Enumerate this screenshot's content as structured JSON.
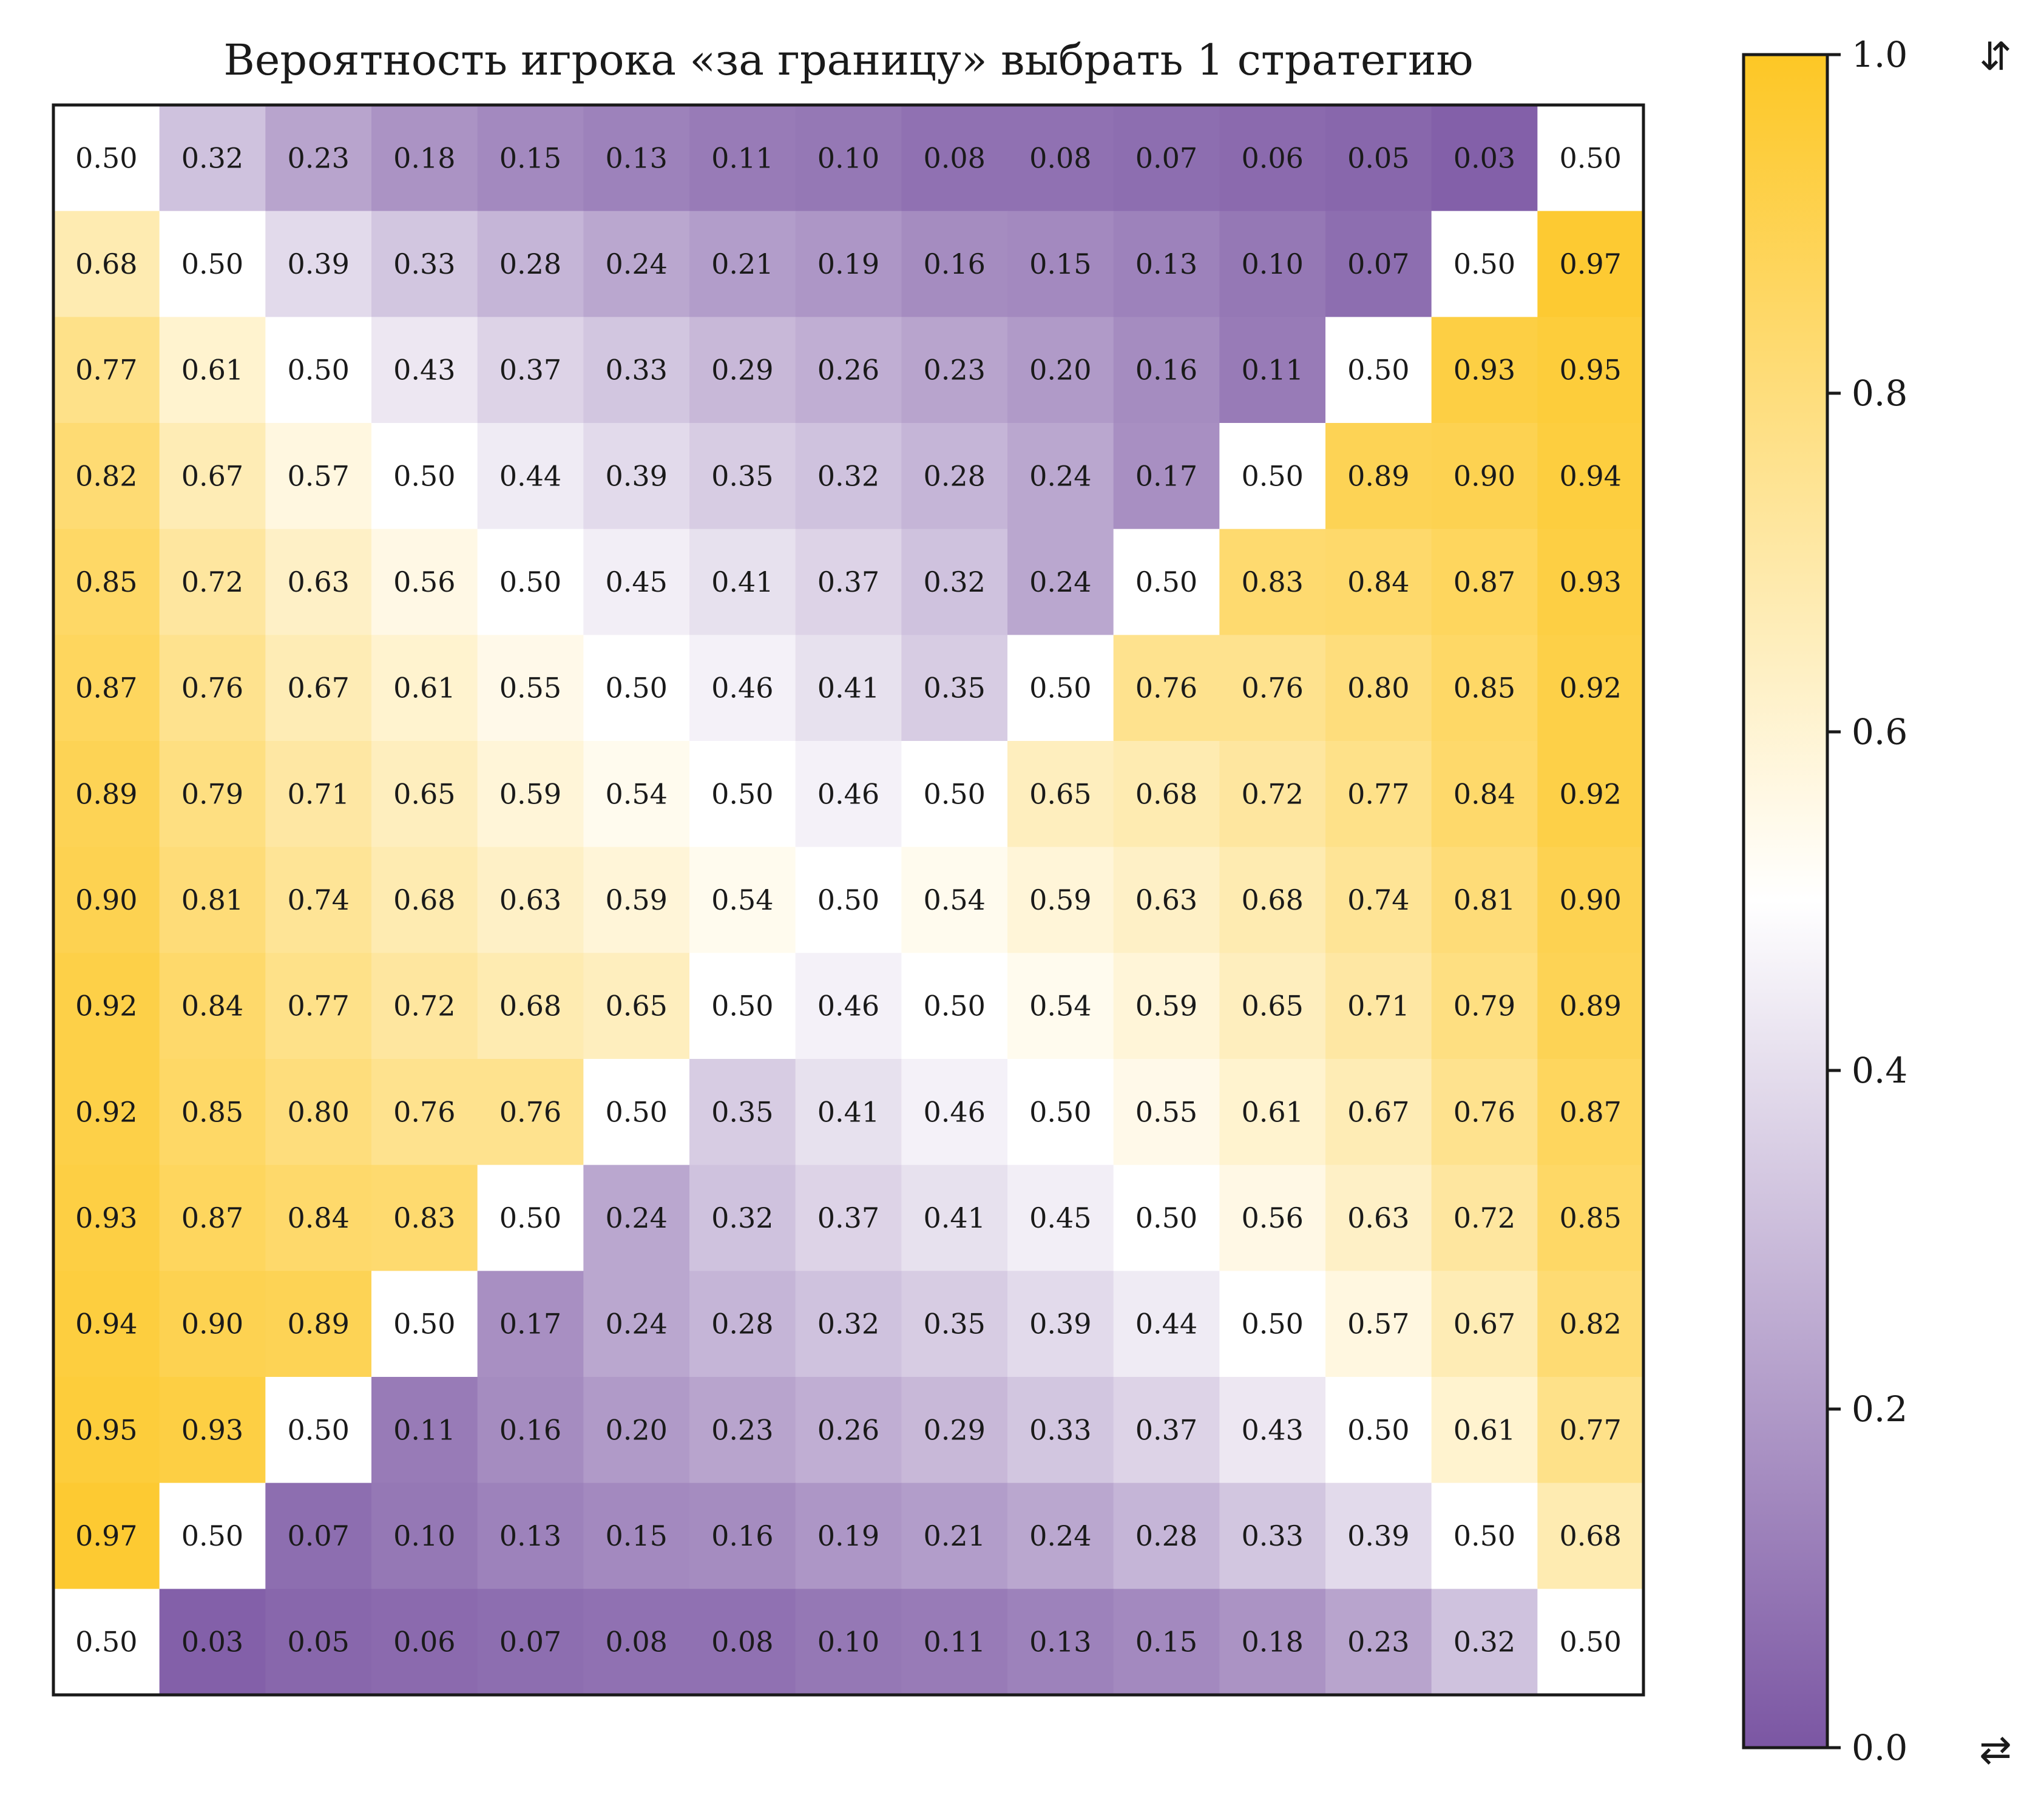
{
  "chart_data": {
    "type": "heatmap",
    "title": "Вероятность игрока «за границу» выбрать 1 стратегию",
    "value_range": [
      0.0,
      1.0
    ],
    "colormap": {
      "low": "#7b56a3",
      "mid": "#ffffff",
      "high": "#fdc725"
    },
    "colorbar": {
      "ticks": [
        "0.0",
        "0.2",
        "0.4",
        "0.6",
        "0.8",
        "1.0"
      ],
      "top_symbol": "⇵",
      "bottom_symbol": "⇄"
    },
    "values": [
      [
        0.5,
        0.32,
        0.23,
        0.18,
        0.15,
        0.13,
        0.11,
        0.1,
        0.08,
        0.08,
        0.07,
        0.06,
        0.05,
        0.03,
        0.5
      ],
      [
        0.68,
        0.5,
        0.39,
        0.33,
        0.28,
        0.24,
        0.21,
        0.19,
        0.16,
        0.15,
        0.13,
        0.1,
        0.07,
        0.5,
        0.97
      ],
      [
        0.77,
        0.61,
        0.5,
        0.43,
        0.37,
        0.33,
        0.29,
        0.26,
        0.23,
        0.2,
        0.16,
        0.11,
        0.5,
        0.93,
        0.95
      ],
      [
        0.82,
        0.67,
        0.57,
        0.5,
        0.44,
        0.39,
        0.35,
        0.32,
        0.28,
        0.24,
        0.17,
        0.5,
        0.89,
        0.9,
        0.94
      ],
      [
        0.85,
        0.72,
        0.63,
        0.56,
        0.5,
        0.45,
        0.41,
        0.37,
        0.32,
        0.24,
        0.5,
        0.83,
        0.84,
        0.87,
        0.93
      ],
      [
        0.87,
        0.76,
        0.67,
        0.61,
        0.55,
        0.5,
        0.46,
        0.41,
        0.35,
        0.5,
        0.76,
        0.76,
        0.8,
        0.85,
        0.92
      ],
      [
        0.89,
        0.79,
        0.71,
        0.65,
        0.59,
        0.54,
        0.5,
        0.46,
        0.5,
        0.65,
        0.68,
        0.72,
        0.77,
        0.84,
        0.92
      ],
      [
        0.9,
        0.81,
        0.74,
        0.68,
        0.63,
        0.59,
        0.54,
        0.5,
        0.54,
        0.59,
        0.63,
        0.68,
        0.74,
        0.81,
        0.9
      ],
      [
        0.92,
        0.84,
        0.77,
        0.72,
        0.68,
        0.65,
        0.5,
        0.46,
        0.5,
        0.54,
        0.59,
        0.65,
        0.71,
        0.79,
        0.89
      ],
      [
        0.92,
        0.85,
        0.8,
        0.76,
        0.76,
        0.5,
        0.35,
        0.41,
        0.46,
        0.5,
        0.55,
        0.61,
        0.67,
        0.76,
        0.87
      ],
      [
        0.93,
        0.87,
        0.84,
        0.83,
        0.5,
        0.24,
        0.32,
        0.37,
        0.41,
        0.45,
        0.5,
        0.56,
        0.63,
        0.72,
        0.85
      ],
      [
        0.94,
        0.9,
        0.89,
        0.5,
        0.17,
        0.24,
        0.28,
        0.32,
        0.35,
        0.39,
        0.44,
        0.5,
        0.57,
        0.67,
        0.82
      ],
      [
        0.95,
        0.93,
        0.5,
        0.11,
        0.16,
        0.2,
        0.23,
        0.26,
        0.29,
        0.33,
        0.37,
        0.43,
        0.5,
        0.61,
        0.77
      ],
      [
        0.97,
        0.5,
        0.07,
        0.1,
        0.13,
        0.15,
        0.16,
        0.19,
        0.21,
        0.24,
        0.28,
        0.33,
        0.39,
        0.5,
        0.68
      ],
      [
        0.5,
        0.03,
        0.05,
        0.06,
        0.07,
        0.08,
        0.08,
        0.1,
        0.11,
        0.13,
        0.15,
        0.18,
        0.23,
        0.32,
        0.5
      ]
    ]
  }
}
